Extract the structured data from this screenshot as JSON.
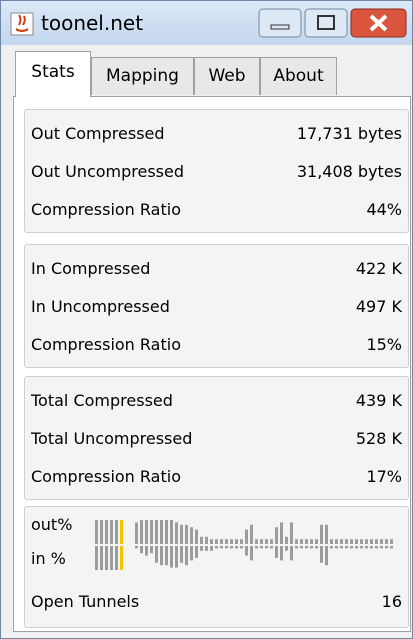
{
  "window": {
    "title": "toonel.net"
  },
  "tabs": [
    "Stats",
    "Mapping",
    "Web",
    "About"
  ],
  "selected_tab": 0,
  "sections": [
    {
      "rows": [
        {
          "label": "Out Compressed",
          "value": "17,731 bytes"
        },
        {
          "label": "Out Uncompressed",
          "value": "31,408 bytes"
        },
        {
          "label": "Compression Ratio",
          "value": "44%"
        }
      ]
    },
    {
      "rows": [
        {
          "label": "In Compressed",
          "value": "422 K"
        },
        {
          "label": "In Uncompressed",
          "value": "497 K"
        },
        {
          "label": "Compression Ratio",
          "value": "15%"
        }
      ]
    },
    {
      "rows": [
        {
          "label": "Total Compressed",
          "value": "439 K"
        },
        {
          "label": "Total Uncompressed",
          "value": "528 K"
        },
        {
          "label": "Compression Ratio",
          "value": "17%"
        }
      ]
    }
  ],
  "graph": {
    "labels": [
      "out%",
      "in %"
    ],
    "out": [
      10,
      10,
      10,
      10,
      10,
      10,
      0,
      0,
      9,
      10,
      10,
      10,
      10,
      10,
      10,
      10,
      9,
      8,
      8,
      7,
      6,
      3,
      3,
      2,
      2,
      2,
      2,
      2,
      2,
      2,
      6,
      8,
      2,
      2,
      2,
      2,
      7,
      9,
      3,
      9,
      2,
      2,
      2,
      2,
      2,
      8,
      8,
      2,
      2,
      2,
      2,
      2,
      2,
      2,
      2,
      2,
      2,
      2,
      2,
      2
    ],
    "in": [
      10,
      10,
      10,
      10,
      10,
      10,
      0,
      0,
      1,
      3,
      4,
      3,
      7,
      8,
      8,
      9,
      9,
      7,
      8,
      6,
      5,
      2,
      2,
      2,
      1,
      1,
      1,
      1,
      1,
      1,
      4,
      6,
      1,
      1,
      1,
      1,
      5,
      6,
      2,
      6,
      1,
      1,
      1,
      1,
      1,
      7,
      8,
      1,
      1,
      1,
      1,
      1,
      1,
      1,
      1,
      1,
      1,
      1,
      1,
      1
    ],
    "max": 10,
    "color": "#9c9c9c",
    "current": 5,
    "current_color": "#f5c000"
  },
  "tunnels": {
    "label": "Open Tunnels",
    "value": "16"
  }
}
